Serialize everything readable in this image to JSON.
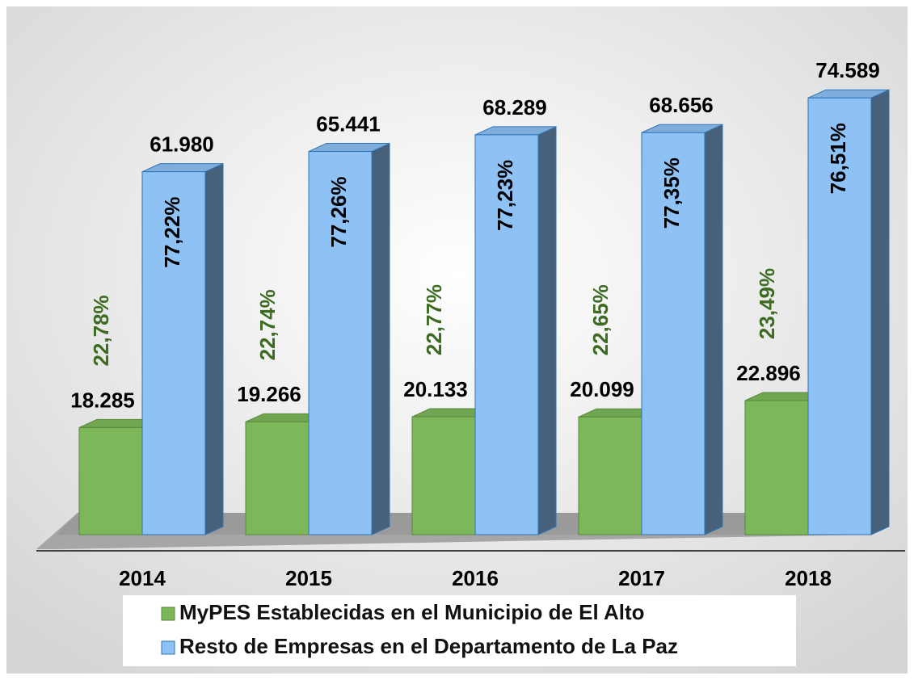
{
  "chart_data": {
    "type": "bar3d",
    "categories": [
      "2014",
      "2015",
      "2016",
      "2017",
      "2018"
    ],
    "series": [
      {
        "name": "MyPES Establecidas en el Municipio de El Alto",
        "color": "#7cb75a",
        "values": [
          18285,
          19266,
          20133,
          20099,
          22896
        ],
        "value_labels": [
          "18.285",
          "19.266",
          "20.133",
          "20.099",
          "22.896"
        ],
        "percent_labels": [
          "22,78%",
          "22,74%",
          "22,77%",
          "22,65%",
          "23,49%"
        ]
      },
      {
        "name": "Resto de Empresas en el Departamento de La Paz",
        "color": "#8ec1f4",
        "values": [
          61980,
          65441,
          68289,
          68656,
          74589
        ],
        "value_labels": [
          "61.980",
          "65.441",
          "68.289",
          "68.656",
          "74.589"
        ],
        "percent_labels": [
          "77,22%",
          "77,26%",
          "77,23%",
          "77,35%",
          "76,51%"
        ]
      }
    ],
    "ylim": [
      0,
      80000
    ],
    "legend": "bottom"
  }
}
